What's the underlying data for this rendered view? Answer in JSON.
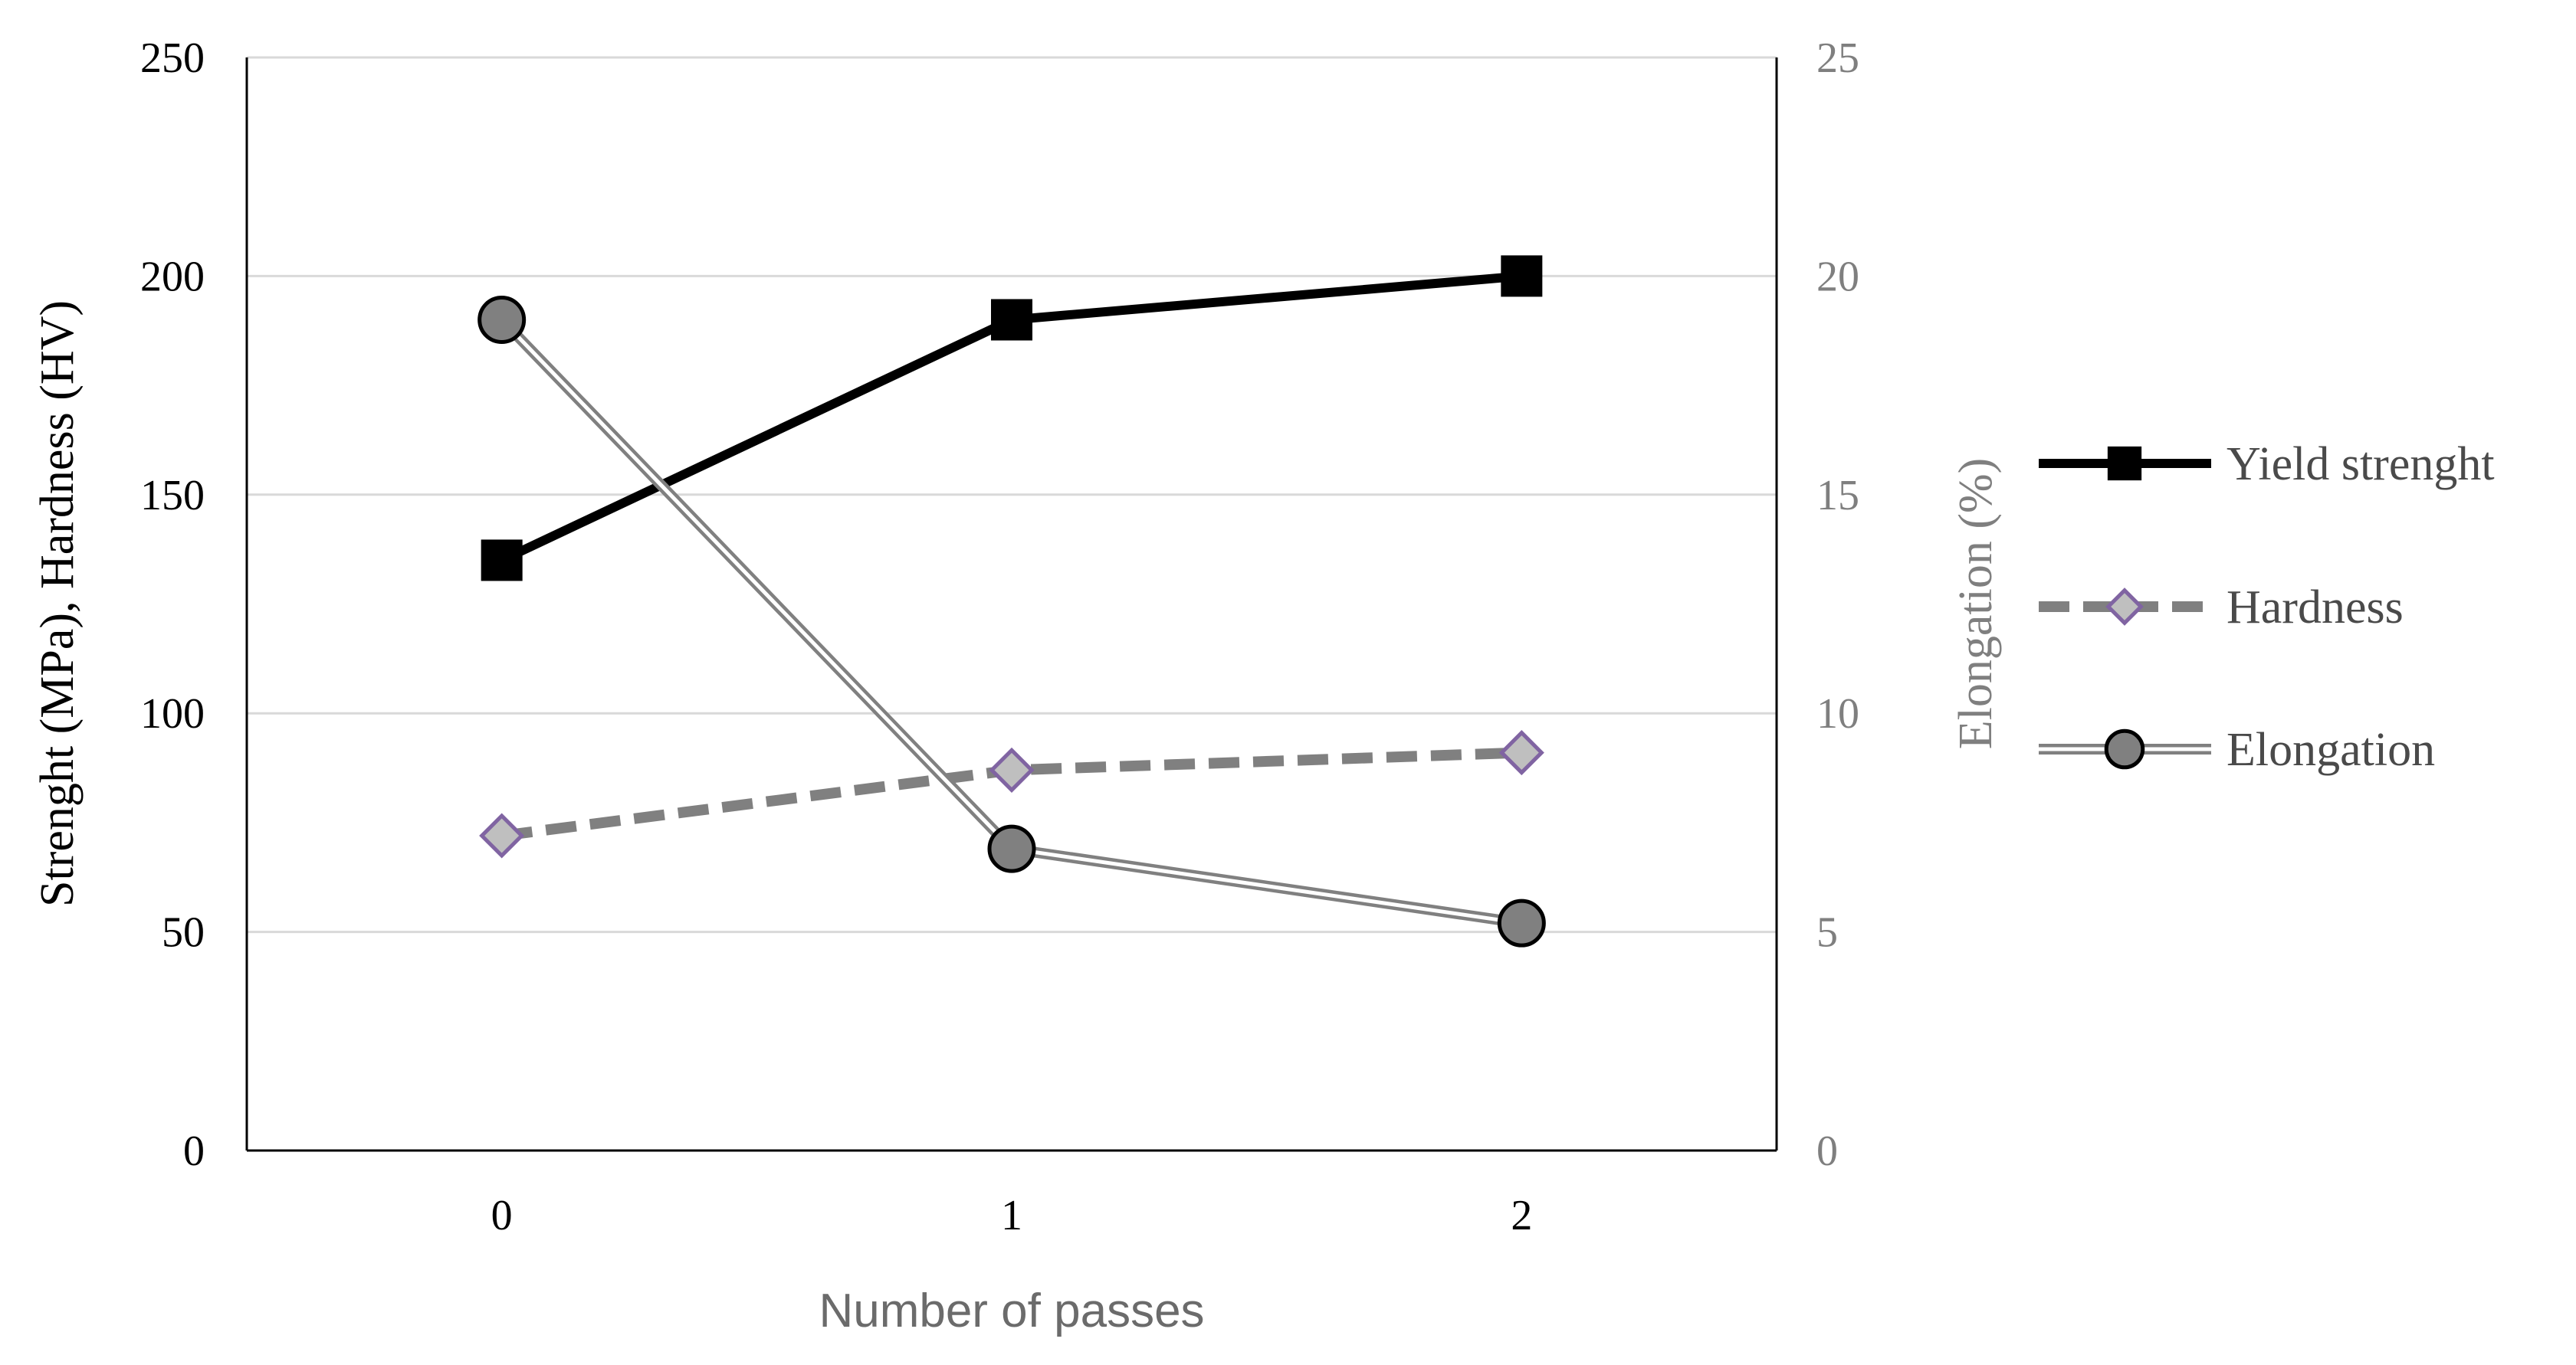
{
  "chart_data": {
    "type": "line",
    "title": "",
    "xlabel": "Number of passes",
    "ylabel_left": "Strenght  (MPa), Hardness (HV)",
    "ylabel_right": "Elongation (%)",
    "categories": [
      "0",
      "1",
      "2"
    ],
    "ylim_left": [
      0,
      250
    ],
    "yticks_left": [
      0,
      50,
      100,
      150,
      200,
      250
    ],
    "ylim_right": [
      0,
      25
    ],
    "yticks_right": [
      0,
      5,
      10,
      15,
      20,
      25
    ],
    "grid": true,
    "legend_position": "right",
    "series": [
      {
        "name": "Yield strenght",
        "axis": "left",
        "values": [
          135,
          190,
          200
        ],
        "color": "#000000",
        "marker": "square",
        "line": "solid"
      },
      {
        "name": "Hardness",
        "axis": "left",
        "values": [
          72,
          87,
          91
        ],
        "color": "#808080",
        "marker_color": "#8064a2",
        "marker": "diamond",
        "line": "dashed"
      },
      {
        "name": "Elongation",
        "axis": "right",
        "values": [
          19,
          6.9,
          5.2
        ],
        "color": "#808080",
        "marker_color": "#808080",
        "marker": "circle",
        "line": "double"
      }
    ]
  }
}
